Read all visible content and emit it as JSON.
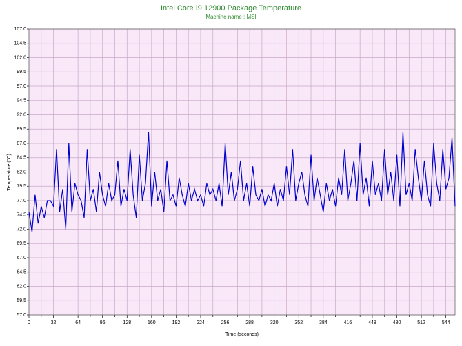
{
  "chart_data": {
    "type": "line",
    "title": "Intel Core I9 12900 Package Temperature",
    "subtitle": "Machine name : MSI",
    "xlabel": "Time (seconds)",
    "ylabel": "Temperature (°C)",
    "xlim": [
      0,
      556
    ],
    "ylim": [
      57,
      107
    ],
    "xticks": [
      0,
      32,
      64,
      96,
      128,
      160,
      192,
      224,
      256,
      288,
      320,
      352,
      384,
      416,
      448,
      480,
      512,
      544
    ],
    "xminorticks": [
      16,
      48,
      80,
      112,
      144,
      176,
      208,
      240,
      272,
      304,
      336,
      368,
      400,
      432,
      464,
      496,
      528
    ],
    "yticks": [
      {
        "value": 57,
        "label": "57.0"
      },
      {
        "value": 59.5,
        "label": "59.5"
      },
      {
        "value": 62,
        "label": "62.0"
      },
      {
        "value": 64.5,
        "label": "64.5"
      },
      {
        "value": 67,
        "label": "67.0"
      },
      {
        "value": 69.5,
        "label": "69.5"
      },
      {
        "value": 72,
        "label": "72.0"
      },
      {
        "value": 74.5,
        "label": "74.5"
      },
      {
        "value": 77,
        "label": "77.0"
      },
      {
        "value": 79.5,
        "label": "79.5"
      },
      {
        "value": 82,
        "label": "82.0"
      },
      {
        "value": 84.5,
        "label": "84.5"
      },
      {
        "value": 87,
        "label": "87.0"
      },
      {
        "value": 89.5,
        "label": "89.5"
      },
      {
        "value": 92,
        "label": "92.0"
      },
      {
        "value": 94.5,
        "label": "94.5"
      },
      {
        "value": 97,
        "label": "97.0"
      },
      {
        "value": 99.5,
        "label": "99.5"
      },
      {
        "value": 102,
        "label": "102.0"
      },
      {
        "value": 104.5,
        "label": "104.5"
      },
      {
        "value": 107,
        "label": "107.0"
      }
    ],
    "grid": true,
    "title_color": "#2f8a2f",
    "plot_background": "#f8e8f8",
    "grid_color": "#c9a9c9",
    "series": [
      {
        "color": "#0000cc",
        "x": [
          0,
          4,
          8,
          12,
          16,
          20,
          24,
          28,
          32,
          36,
          40,
          44,
          48,
          52,
          56,
          60,
          64,
          68,
          72,
          76,
          80,
          84,
          88,
          92,
          96,
          100,
          104,
          108,
          112,
          116,
          120,
          124,
          128,
          132,
          136,
          140,
          144,
          148,
          152,
          156,
          160,
          164,
          168,
          172,
          176,
          180,
          184,
          188,
          192,
          196,
          200,
          204,
          208,
          212,
          216,
          220,
          224,
          228,
          232,
          236,
          240,
          244,
          248,
          252,
          256,
          260,
          264,
          268,
          272,
          276,
          280,
          284,
          288,
          292,
          296,
          300,
          304,
          308,
          312,
          316,
          320,
          324,
          328,
          332,
          336,
          340,
          344,
          348,
          352,
          356,
          360,
          364,
          368,
          372,
          376,
          380,
          384,
          388,
          392,
          396,
          400,
          404,
          408,
          412,
          416,
          420,
          424,
          428,
          432,
          436,
          440,
          444,
          448,
          452,
          456,
          460,
          464,
          468,
          472,
          476,
          480,
          484,
          488,
          492,
          496,
          500,
          504,
          508,
          512,
          516,
          520,
          524,
          528,
          532,
          536,
          540,
          544,
          548,
          552,
          556
        ],
        "values": [
          75,
          71.5,
          78,
          73,
          76,
          74,
          77,
          77,
          76,
          86,
          75,
          79,
          72,
          87,
          75,
          80,
          78,
          77,
          74,
          86,
          77,
          79,
          75,
          82,
          78,
          76,
          80,
          77,
          78,
          84,
          76,
          79,
          77,
          86,
          78,
          74,
          85,
          77,
          80,
          89,
          76,
          82,
          77,
          79,
          75,
          84,
          77,
          78,
          76,
          81,
          78,
          76,
          80,
          77,
          79,
          77,
          78,
          76,
          80,
          78,
          79,
          77,
          80,
          76,
          87,
          78,
          82,
          77,
          79,
          84,
          77,
          80,
          76,
          83,
          78,
          77,
          79,
          76,
          78,
          77,
          80,
          76,
          79,
          77,
          83,
          78,
          86,
          77,
          80,
          82,
          78,
          76,
          85,
          77,
          81,
          78,
          75,
          80,
          77,
          79,
          76,
          81,
          78,
          86,
          77,
          80,
          84,
          77,
          87,
          78,
          81,
          76,
          84,
          78,
          80,
          77,
          86,
          78,
          82,
          77,
          85,
          76,
          89,
          78,
          80,
          77,
          86,
          81,
          77,
          84,
          78,
          76,
          87,
          80,
          77,
          86,
          79,
          81,
          88,
          76
        ]
      }
    ]
  }
}
